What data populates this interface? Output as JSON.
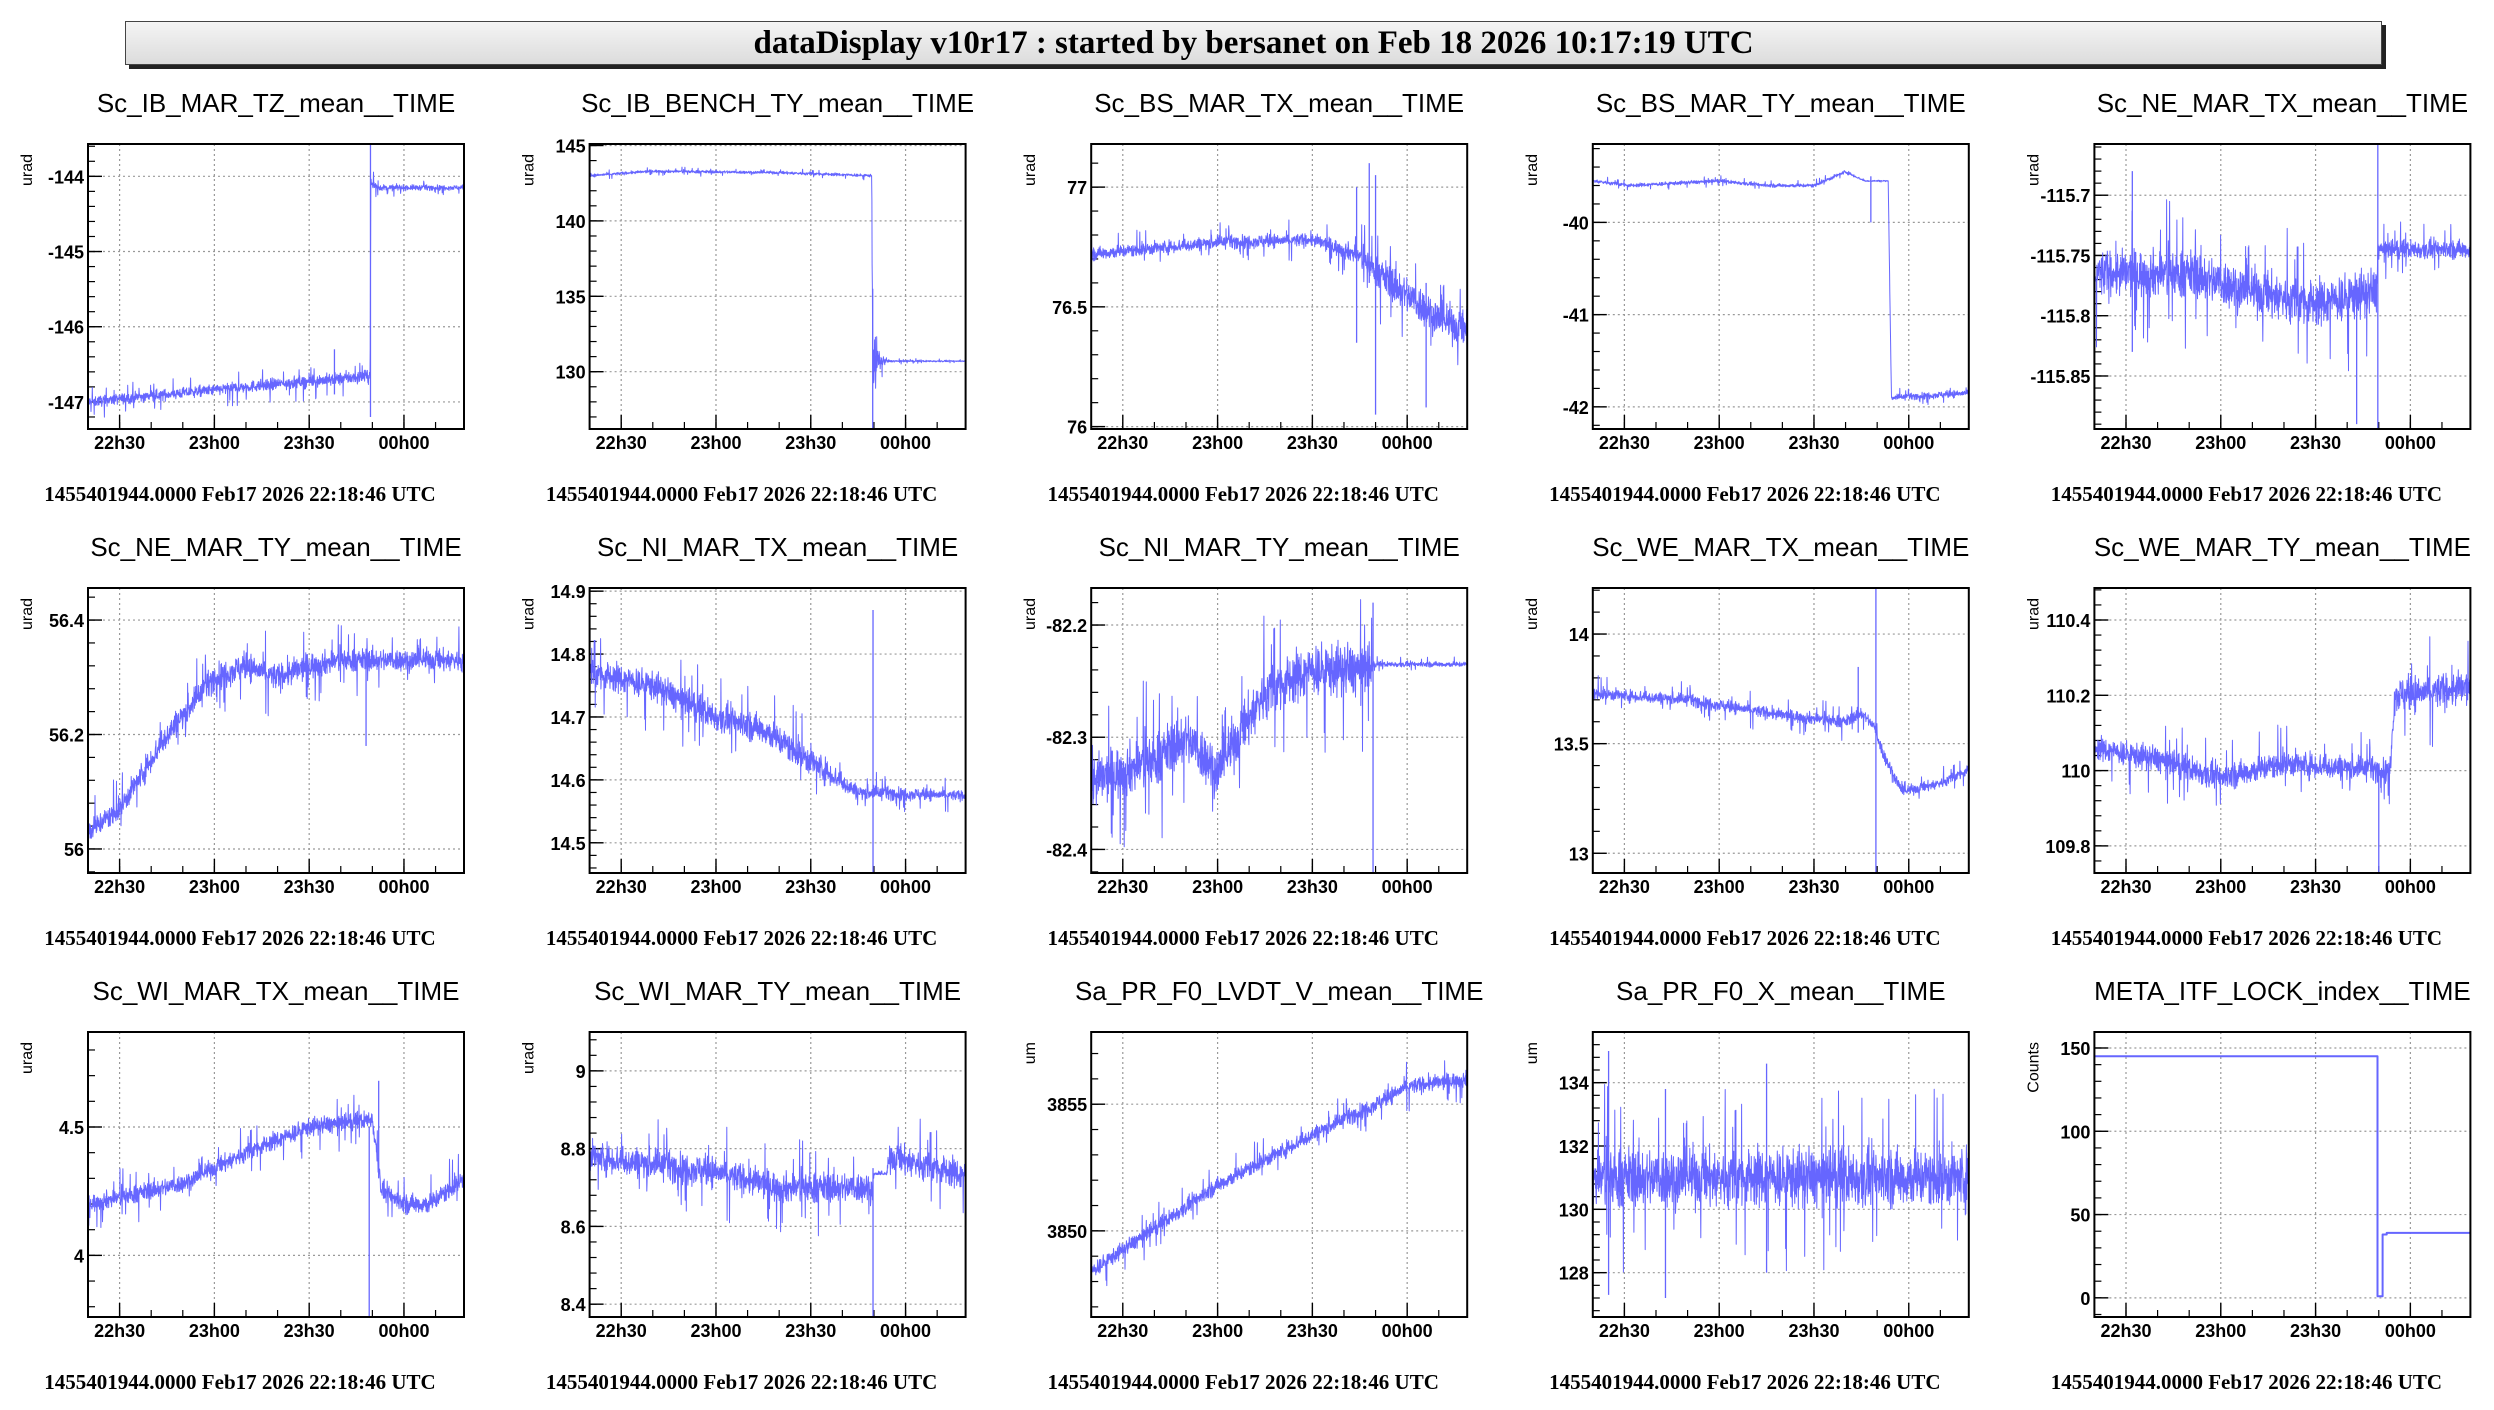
{
  "header": {
    "title": "dataDisplay v10r17 : started by bersanet on Feb 18 2026 10:17:19 UTC"
  },
  "style": {
    "line_color": "#6666ff",
    "grid_color": "#999999",
    "frame_color": "#000000"
  },
  "x_axis": {
    "tick_labels": [
      "22h30",
      "23h00",
      "23h30",
      "00h00"
    ],
    "tick_values_min_after_2220": [
      10,
      40,
      70,
      100
    ],
    "xlim_min_after_2220": [
      0,
      119
    ]
  },
  "chart_data": [
    {
      "type": "line",
      "title": "Sc_IB_MAR_TZ_mean__TIME",
      "ylabel": "urad",
      "footer": "1455401944.0000 Feb17 2026 22:18:46 UTC",
      "y_ticks": [
        -147,
        -146,
        -145,
        -144
      ],
      "y_tick_labels": [
        "-147",
        "-146",
        "-145",
        "-144"
      ],
      "ylim": [
        -147.36,
        -143.57
      ],
      "points": [
        [
          0,
          -147.0,
          0.09
        ],
        [
          30,
          -146.88,
          0.09
        ],
        [
          60,
          -146.76,
          0.1
        ],
        [
          89.3,
          -146.66,
          0.11
        ],
        [
          89.5,
          -144.1,
          0.1
        ],
        [
          92,
          -144.15,
          0.05
        ],
        [
          119,
          -144.15,
          0.04
        ]
      ],
      "spikes": [
        [
          89.4,
          -147.2,
          -143.57
        ],
        [
          78,
          -146.9,
          -146.3
        ]
      ]
    },
    {
      "type": "line",
      "title": "Sc_IB_BENCH_TY_mean__TIME",
      "ylabel": "urad",
      "footer": "1455401944.0000 Feb17 2026 22:18:46 UTC",
      "y_ticks": [
        130,
        135,
        140,
        145
      ],
      "y_tick_labels": [
        "130",
        "135",
        "140",
        "145"
      ],
      "ylim": [
        126.2,
        145.1
      ],
      "points": [
        [
          0,
          143.0,
          0.12
        ],
        [
          20,
          143.3,
          0.12
        ],
        [
          60,
          143.2,
          0.12
        ],
        [
          89.3,
          143.0,
          0.12
        ],
        [
          89.6,
          130.7,
          3.2
        ],
        [
          92,
          130.7,
          0.6
        ],
        [
          95,
          130.7,
          0.08
        ],
        [
          119,
          130.7,
          0.06
        ]
      ],
      "spikes": [
        [
          89.6,
          126.2,
          135.5
        ]
      ]
    },
    {
      "type": "line",
      "title": "Sc_BS_MAR_TX_mean__TIME",
      "ylabel": "urad",
      "footer": "1455401944.0000 Feb17 2026 22:18:46 UTC",
      "y_ticks": [
        76,
        76.5,
        77
      ],
      "y_tick_labels": [
        "76",
        "76.5",
        "77"
      ],
      "ylim": [
        75.99,
        77.18
      ],
      "points": [
        [
          0,
          76.72,
          0.035
        ],
        [
          40,
          76.77,
          0.035
        ],
        [
          70,
          76.78,
          0.035
        ],
        [
          84,
          76.72,
          0.05
        ],
        [
          95,
          76.6,
          0.1
        ],
        [
          110,
          76.45,
          0.1
        ],
        [
          119,
          76.4,
          0.1
        ]
      ],
      "spikes": [
        [
          84,
          76.35,
          77.0
        ],
        [
          88,
          76.6,
          77.1
        ],
        [
          90,
          76.05,
          77.05
        ],
        [
          106,
          76.08,
          76.6
        ]
      ]
    },
    {
      "type": "line",
      "title": "Sc_BS_MAR_TY_mean__TIME",
      "ylabel": "urad",
      "footer": "1455401944.0000 Feb17 2026 22:18:46 UTC",
      "y_ticks": [
        -42,
        -41,
        -40
      ],
      "y_tick_labels": [
        "-42",
        "-41",
        "-40"
      ],
      "ylim": [
        -42.24,
        -39.15
      ],
      "points": [
        [
          0,
          -39.55,
          0.025
        ],
        [
          12,
          -39.6,
          0.025
        ],
        [
          40,
          -39.55,
          0.025
        ],
        [
          55,
          -39.6,
          0.025
        ],
        [
          70,
          -39.6,
          0.025
        ],
        [
          80,
          -39.45,
          0.025
        ],
        [
          86,
          -39.55,
          0.01
        ],
        [
          93.5,
          -39.55,
          0.01
        ],
        [
          94.5,
          -41.9,
          0.04
        ],
        [
          119,
          -41.85,
          0.05
        ]
      ],
      "spikes": [
        [
          88,
          -40.0,
          -39.5
        ]
      ]
    },
    {
      "type": "line",
      "title": "Sc_NE_MAR_TX_mean__TIME",
      "ylabel": "urad",
      "footer": "1455401944.0000 Feb17 2026 22:18:46 UTC",
      "y_ticks": [
        -115.85,
        -115.8,
        -115.75,
        -115.7
      ],
      "y_tick_labels": [
        "-115.85",
        "-115.8",
        "-115.75",
        "-115.7"
      ],
      "ylim": [
        -115.894,
        -115.6575
      ],
      "points": [
        [
          0,
          -115.765,
          0.025
        ],
        [
          30,
          -115.765,
          0.025
        ],
        [
          50,
          -115.78,
          0.025
        ],
        [
          70,
          -115.79,
          0.025
        ],
        [
          89.3,
          -115.78,
          0.025
        ],
        [
          89.7,
          -115.745,
          0.01
        ],
        [
          119,
          -115.745,
          0.01
        ]
      ],
      "spikes": [
        [
          89.7,
          -115.894,
          -115.6575
        ],
        [
          12,
          -115.83,
          -115.68
        ],
        [
          83,
          -115.89,
          -115.77
        ]
      ]
    },
    {
      "type": "line",
      "title": "Sc_NE_MAR_TY_mean__TIME",
      "ylabel": "urad",
      "footer": "1455401944.0000 Feb17 2026 22:18:46 UTC",
      "y_ticks": [
        56,
        56.2,
        56.4
      ],
      "y_tick_labels": [
        "56",
        "56.2",
        "56.4"
      ],
      "ylim": [
        55.958,
        56.456
      ],
      "points": [
        [
          0,
          56.03,
          0.025
        ],
        [
          10,
          56.07,
          0.025
        ],
        [
          25,
          56.2,
          0.03
        ],
        [
          40,
          56.3,
          0.03
        ],
        [
          50,
          56.32,
          0.03
        ],
        [
          60,
          56.3,
          0.03
        ],
        [
          70,
          56.32,
          0.03
        ],
        [
          80,
          56.33,
          0.025
        ],
        [
          119,
          56.33,
          0.025
        ]
      ],
      "spikes": [
        [
          88,
          56.18,
          56.35
        ]
      ]
    },
    {
      "type": "line",
      "title": "Sc_NI_MAR_TX_mean__TIME",
      "ylabel": "urad",
      "footer": "1455401944.0000 Feb17 2026 22:18:46 UTC",
      "y_ticks": [
        14.5,
        14.6,
        14.7,
        14.8,
        14.9
      ],
      "y_tick_labels": [
        "14.5",
        "14.6",
        "14.7",
        "14.8",
        "14.9"
      ],
      "ylim": [
        14.452,
        14.905
      ],
      "points": [
        [
          0,
          14.77,
          0.03
        ],
        [
          20,
          14.75,
          0.03
        ],
        [
          40,
          14.7,
          0.03
        ],
        [
          55,
          14.68,
          0.03
        ],
        [
          70,
          14.63,
          0.03
        ],
        [
          85,
          14.58,
          0.015
        ],
        [
          119,
          14.575,
          0.01
        ]
      ],
      "spikes": [
        [
          89.7,
          14.452,
          14.87
        ]
      ]
    },
    {
      "type": "line",
      "title": "Sc_NI_MAR_TY_mean__TIME",
      "ylabel": "urad",
      "footer": "1455401944.0000 Feb17 2026 22:18:46 UTC",
      "y_ticks": [
        -82.4,
        -82.3,
        -82.2
      ],
      "y_tick_labels": [
        "-82.4",
        "-82.3",
        "-82.2"
      ],
      "ylim": [
        -82.421,
        -82.167
      ],
      "points": [
        [
          0,
          -82.34,
          0.03
        ],
        [
          20,
          -82.32,
          0.03
        ],
        [
          30,
          -82.3,
          0.03
        ],
        [
          40,
          -82.33,
          0.03
        ],
        [
          55,
          -82.26,
          0.03
        ],
        [
          70,
          -82.24,
          0.03
        ],
        [
          88.8,
          -82.24,
          0.03
        ],
        [
          89.3,
          -82.235,
          0.003
        ],
        [
          119,
          -82.235,
          0.003
        ]
      ],
      "spikes": [
        [
          89.2,
          -82.421,
          -82.18
        ]
      ]
    },
    {
      "type": "line",
      "title": "Sc_WE_MAR_TX_mean__TIME",
      "ylabel": "urad",
      "footer": "1455401944.0000 Feb17 2026 22:18:46 UTC",
      "y_ticks": [
        13,
        13.5,
        14
      ],
      "y_tick_labels": [
        "13",
        "13.5",
        "14"
      ],
      "ylim": [
        12.91,
        14.21
      ],
      "points": [
        [
          0,
          13.73,
          0.035
        ],
        [
          30,
          13.7,
          0.035
        ],
        [
          60,
          13.63,
          0.035
        ],
        [
          80,
          13.6,
          0.035
        ],
        [
          85,
          13.64,
          0.035
        ],
        [
          89,
          13.58,
          0.03
        ],
        [
          92,
          13.45,
          0.04
        ],
        [
          98,
          13.28,
          0.03
        ],
        [
          104,
          13.3,
          0.03
        ],
        [
          110,
          13.32,
          0.03
        ],
        [
          119,
          13.38,
          0.03
        ]
      ],
      "spikes": [
        [
          89.6,
          12.91,
          14.21
        ],
        [
          84,
          13.55,
          13.85
        ]
      ]
    },
    {
      "type": "line",
      "title": "Sc_WE_MAR_TY_mean__TIME",
      "ylabel": "urad",
      "footer": "1455401944.0000 Feb17 2026 22:18:46 UTC",
      "y_ticks": [
        109.8,
        110,
        110.2,
        110.4
      ],
      "y_tick_labels": [
        "109.8",
        "110",
        "110.2",
        "110.4"
      ],
      "ylim": [
        109.728,
        110.485
      ],
      "points": [
        [
          0,
          110.06,
          0.04
        ],
        [
          20,
          110.03,
          0.045
        ],
        [
          40,
          109.98,
          0.045
        ],
        [
          60,
          110.02,
          0.045
        ],
        [
          93.5,
          110.0,
          0.04
        ],
        [
          95,
          110.2,
          0.06
        ],
        [
          119,
          110.22,
          0.06
        ]
      ],
      "spikes": [
        [
          90,
          109.728,
          110.0
        ]
      ]
    },
    {
      "type": "line",
      "title": "Sc_WI_MAR_TX_mean__TIME",
      "ylabel": "urad",
      "footer": "1455401944.0000 Feb17 2026 22:18:46 UTC",
      "y_ticks": [
        4,
        4.5
      ],
      "y_tick_labels": [
        "4",
        "4.5"
      ],
      "ylim": [
        3.76,
        4.87
      ],
      "points": [
        [
          0,
          4.2,
          0.045
        ],
        [
          30,
          4.28,
          0.045
        ],
        [
          50,
          4.4,
          0.045
        ],
        [
          60,
          4.45,
          0.045
        ],
        [
          70,
          4.5,
          0.045
        ],
        [
          90,
          4.53,
          0.045
        ],
        [
          93,
          4.25,
          0.05
        ],
        [
          100,
          4.2,
          0.05
        ],
        [
          108,
          4.2,
          0.05
        ],
        [
          119,
          4.3,
          0.05
        ]
      ],
      "spikes": [
        [
          89,
          3.76,
          4.5
        ],
        [
          92,
          4.3,
          4.68
        ]
      ]
    },
    {
      "type": "line",
      "title": "Sc_WI_MAR_TY_mean__TIME",
      "ylabel": "urad",
      "footer": "1455401944.0000 Feb17 2026 22:18:46 UTC",
      "y_ticks": [
        8.4,
        8.6,
        8.8,
        9
      ],
      "y_tick_labels": [
        "8.4",
        "8.6",
        "8.8",
        "9"
      ],
      "ylim": [
        8.367,
        9.1
      ],
      "points": [
        [
          0,
          8.78,
          0.05
        ],
        [
          40,
          8.74,
          0.05
        ],
        [
          60,
          8.7,
          0.05
        ],
        [
          89.5,
          8.7,
          0.05
        ],
        [
          90,
          8.735,
          0.005
        ],
        [
          94,
          8.735,
          0.005
        ],
        [
          95,
          8.78,
          0.05
        ],
        [
          119,
          8.73,
          0.05
        ]
      ],
      "spikes": [
        [
          89.7,
          8.367,
          8.75
        ]
      ]
    },
    {
      "type": "line",
      "title": "Sa_PR_F0_LVDT_V_mean__TIME",
      "ylabel": "um",
      "footer": "1455401944.0000 Feb17 2026 22:18:46 UTC",
      "y_ticks": [
        3850,
        3855
      ],
      "y_tick_labels": [
        "3850",
        "3855"
      ],
      "ylim": [
        3846.6,
        3857.85
      ],
      "points": [
        [
          0,
          3848.4,
          0.4
        ],
        [
          40,
          3851.8,
          0.4
        ],
        [
          70,
          3853.8,
          0.4
        ],
        [
          90,
          3855.0,
          0.4
        ],
        [
          100,
          3855.7,
          0.4
        ],
        [
          119,
          3856.0,
          0.4
        ]
      ],
      "spikes": []
    },
    {
      "type": "line",
      "title": "Sa_PR_F0_X_mean__TIME",
      "ylabel": "um",
      "footer": "1455401944.0000 Feb17 2026 22:18:46 UTC",
      "y_ticks": [
        128,
        130,
        132,
        134
      ],
      "y_tick_labels": [
        "128",
        "130",
        "132",
        "134"
      ],
      "ylim": [
        126.6,
        135.6
      ],
      "points": [
        [
          0,
          131.0,
          1.2
        ],
        [
          119,
          131.0,
          1.2
        ]
      ],
      "spikes": [
        [
          5,
          127.3,
          135.0
        ],
        [
          23,
          127.2,
          133.8
        ],
        [
          55,
          128.0,
          134.6
        ]
      ]
    },
    {
      "type": "line",
      "title": "META_ITF_LOCK_index__TIME",
      "ylabel": "Counts",
      "footer": "1455401944.0000 Feb17 2026 22:18:46 UTC",
      "y_ticks": [
        0,
        50,
        100,
        150
      ],
      "y_tick_labels": [
        "0",
        "50",
        "100",
        "150"
      ],
      "ylim": [
        -11.5,
        159.6
      ],
      "points": [
        [
          0,
          145,
          0
        ],
        [
          89.6,
          145,
          0
        ],
        [
          89.6,
          1,
          0
        ],
        [
          91.2,
          1,
          0
        ],
        [
          91.2,
          38,
          0
        ],
        [
          92.5,
          38,
          0
        ],
        [
          92.5,
          39,
          0
        ],
        [
          119,
          39,
          0
        ]
      ],
      "spikes": []
    }
  ]
}
